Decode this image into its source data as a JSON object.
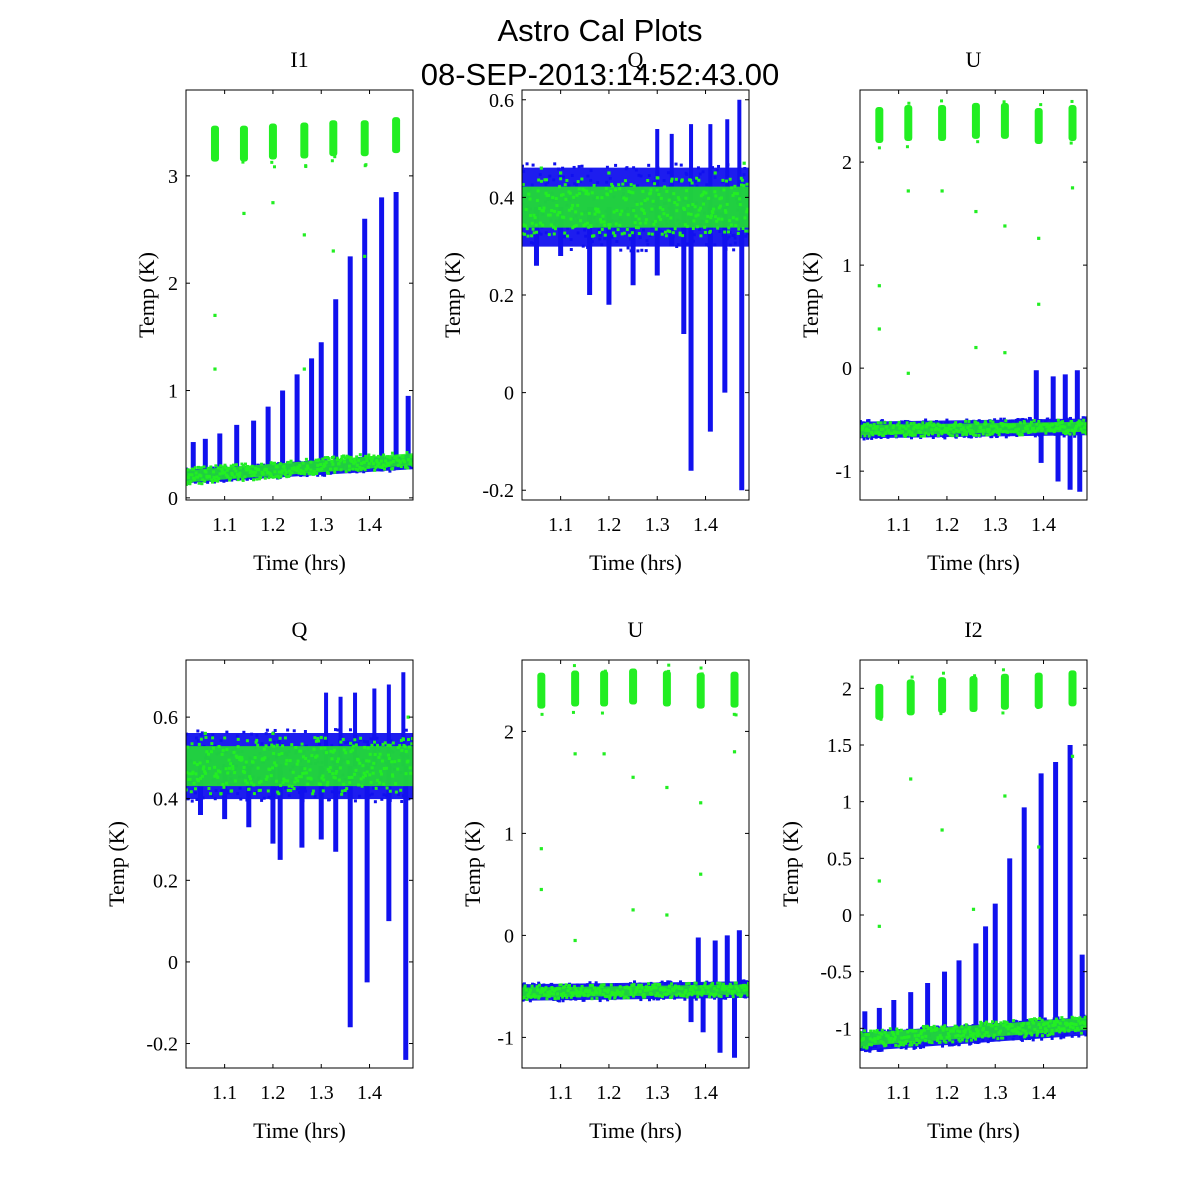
{
  "figure": {
    "title_line1": "Astro Cal Plots",
    "title_line2": "08-SEP-2013:14:52:43.00"
  },
  "colors": {
    "background": "#ffffff",
    "blue_series": "#1111ee",
    "green_series": "#22ee22"
  },
  "chart_data": [
    {
      "type": "scatter",
      "title": "I1",
      "xlabel": "Time (hrs)",
      "ylabel": "Temp (K)",
      "xlim": [
        1.02,
        1.49
      ],
      "ylim": [
        -0.02,
        3.8
      ],
      "xticks": [
        1.1,
        1.2,
        1.3,
        1.4
      ],
      "xtick_labels": [
        "1.1",
        "1.2",
        "1.3",
        "1.4"
      ],
      "yticks": [
        0,
        1,
        2,
        3
      ],
      "ytick_labels": [
        "0",
        "1",
        "2",
        "3"
      ],
      "series": [
        {
          "color": "blue",
          "baseline": [
            [
              1.02,
              0.2
            ],
            [
              1.49,
              0.33
            ]
          ],
          "baseline_spread": 0.07,
          "spikes": [
            [
              1.035,
              0.52
            ],
            [
              1.06,
              0.55
            ],
            [
              1.09,
              0.6
            ],
            [
              1.125,
              0.68
            ],
            [
              1.16,
              0.72
            ],
            [
              1.19,
              0.85
            ],
            [
              1.22,
              1.0
            ],
            [
              1.25,
              1.15
            ],
            [
              1.28,
              1.3
            ],
            [
              1.3,
              1.45
            ],
            [
              1.33,
              1.85
            ],
            [
              1.36,
              2.25
            ],
            [
              1.39,
              2.6
            ],
            [
              1.425,
              2.8
            ],
            [
              1.455,
              2.85
            ],
            [
              1.48,
              0.95
            ]
          ]
        },
        {
          "color": "green",
          "baseline": [
            [
              1.02,
              0.2
            ],
            [
              1.49,
              0.36
            ]
          ],
          "baseline_spread": 0.08,
          "clusters": [
            [
              1.08,
              3.3
            ],
            [
              1.14,
              3.3
            ],
            [
              1.2,
              3.32
            ],
            [
              1.265,
              3.33
            ],
            [
              1.325,
              3.35
            ],
            [
              1.39,
              3.35
            ],
            [
              1.455,
              3.38
            ]
          ],
          "outliers": [
            [
              1.08,
              1.7
            ],
            [
              1.08,
              1.2
            ],
            [
              1.14,
              2.65
            ],
            [
              1.2,
              2.75
            ],
            [
              1.265,
              2.45
            ],
            [
              1.325,
              2.3
            ],
            [
              1.39,
              2.25
            ],
            [
              1.265,
              1.2
            ]
          ]
        }
      ]
    },
    {
      "type": "scatter",
      "title": "Q",
      "xlabel": "Time (hrs)",
      "ylabel": "Temp (K)",
      "xlim": [
        1.02,
        1.49
      ],
      "ylim": [
        -0.22,
        0.62
      ],
      "xticks": [
        1.1,
        1.2,
        1.3,
        1.4
      ],
      "xtick_labels": [
        "1.1",
        "1.2",
        "1.3",
        "1.4"
      ],
      "yticks": [
        -0.2,
        0,
        0.2,
        0.4,
        0.6
      ],
      "ytick_labels": [
        "-0.2",
        "0",
        "0.2",
        "0.4",
        "0.6"
      ],
      "series": [
        {
          "color": "blue",
          "baseline": [
            [
              1.02,
              0.38
            ],
            [
              1.49,
              0.38
            ]
          ],
          "baseline_spread": 0.09,
          "spikes": [
            [
              1.05,
              0.26
            ],
            [
              1.1,
              0.28
            ],
            [
              1.16,
              0.2
            ],
            [
              1.2,
              0.18
            ],
            [
              1.25,
              0.22
            ],
            [
              1.3,
              0.24
            ],
            [
              1.33,
              0.3
            ],
            [
              1.355,
              0.12
            ],
            [
              1.37,
              -0.16
            ],
            [
              1.41,
              -0.08
            ],
            [
              1.44,
              0.0
            ],
            [
              1.475,
              -0.2
            ]
          ],
          "up_spikes": [
            [
              1.3,
              0.54
            ],
            [
              1.33,
              0.53
            ],
            [
              1.37,
              0.55
            ],
            [
              1.41,
              0.55
            ],
            [
              1.445,
              0.56
            ],
            [
              1.47,
              0.6
            ]
          ]
        },
        {
          "color": "green",
          "baseline": [
            [
              1.02,
              0.38
            ],
            [
              1.49,
              0.38
            ]
          ],
          "baseline_spread": 0.06,
          "outliers": [
            [
              1.06,
              0.46
            ],
            [
              1.1,
              0.45
            ],
            [
              1.2,
              0.45
            ],
            [
              1.3,
              0.44
            ],
            [
              1.42,
              0.45
            ],
            [
              1.48,
              0.47
            ]
          ]
        }
      ]
    },
    {
      "type": "scatter",
      "title": "U",
      "xlabel": "Time (hrs)",
      "ylabel": "Temp (K)",
      "xlim": [
        1.02,
        1.49
      ],
      "ylim": [
        -1.28,
        2.7
      ],
      "xticks": [
        1.1,
        1.2,
        1.3,
        1.4
      ],
      "xtick_labels": [
        "1.1",
        "1.2",
        "1.3",
        "1.4"
      ],
      "yticks": [
        -1,
        0,
        1,
        2
      ],
      "ytick_labels": [
        "-1",
        "0",
        "1",
        "2"
      ],
      "series": [
        {
          "color": "blue",
          "baseline": [
            [
              1.02,
              -0.6
            ],
            [
              1.49,
              -0.57
            ]
          ],
          "baseline_spread": 0.09,
          "spikes": [
            [
              1.385,
              -0.02
            ],
            [
              1.42,
              -0.08
            ],
            [
              1.445,
              -0.06
            ],
            [
              1.47,
              -0.02
            ]
          ],
          "down_spikes": [
            [
              1.395,
              -0.92
            ],
            [
              1.43,
              -1.1
            ],
            [
              1.455,
              -1.18
            ],
            [
              1.475,
              -1.2
            ]
          ]
        },
        {
          "color": "green",
          "baseline": [
            [
              1.02,
              -0.6
            ],
            [
              1.49,
              -0.57
            ]
          ],
          "baseline_spread": 0.07,
          "clusters": [
            [
              1.06,
              2.36
            ],
            [
              1.12,
              2.38
            ],
            [
              1.19,
              2.38
            ],
            [
              1.26,
              2.4
            ],
            [
              1.32,
              2.4
            ],
            [
              1.39,
              2.35
            ],
            [
              1.46,
              2.38
            ]
          ],
          "outliers": [
            [
              1.06,
              0.8
            ],
            [
              1.06,
              0.38
            ],
            [
              1.12,
              1.72
            ],
            [
              1.12,
              -0.05
            ],
            [
              1.19,
              1.72
            ],
            [
              1.26,
              1.52
            ],
            [
              1.26,
              0.2
            ],
            [
              1.32,
              1.38
            ],
            [
              1.32,
              0.15
            ],
            [
              1.39,
              1.26
            ],
            [
              1.39,
              0.62
            ],
            [
              1.46,
              1.75
            ]
          ]
        }
      ]
    },
    {
      "type": "scatter",
      "title": "Q",
      "xlabel": "Time (hrs)",
      "ylabel": "Temp (K)",
      "xlim": [
        1.02,
        1.49
      ],
      "ylim": [
        -0.26,
        0.74
      ],
      "xticks": [
        1.1,
        1.2,
        1.3,
        1.4
      ],
      "xtick_labels": [
        "1.1",
        "1.2",
        "1.3",
        "1.4"
      ],
      "yticks": [
        -0.2,
        0,
        0.2,
        0.4,
        0.6
      ],
      "ytick_labels": [
        "-0.2",
        "0",
        "0.2",
        "0.4",
        "0.6"
      ],
      "series": [
        {
          "color": "blue",
          "baseline": [
            [
              1.02,
              0.48
            ],
            [
              1.49,
              0.48
            ]
          ],
          "baseline_spread": 0.09,
          "spikes": [
            [
              1.05,
              0.36
            ],
            [
              1.1,
              0.35
            ],
            [
              1.15,
              0.33
            ],
            [
              1.2,
              0.29
            ],
            [
              1.215,
              0.25
            ],
            [
              1.26,
              0.28
            ],
            [
              1.3,
              0.3
            ],
            [
              1.33,
              0.27
            ],
            [
              1.36,
              -0.16
            ],
            [
              1.395,
              -0.05
            ],
            [
              1.44,
              0.1
            ],
            [
              1.475,
              -0.24
            ]
          ],
          "up_spikes": [
            [
              1.31,
              0.66
            ],
            [
              1.34,
              0.65
            ],
            [
              1.37,
              0.66
            ],
            [
              1.41,
              0.67
            ],
            [
              1.44,
              0.68
            ],
            [
              1.47,
              0.71
            ]
          ]
        },
        {
          "color": "green",
          "baseline": [
            [
              1.02,
              0.48
            ],
            [
              1.49,
              0.48
            ]
          ],
          "baseline_spread": 0.07,
          "outliers": [
            [
              1.06,
              0.56
            ],
            [
              1.2,
              0.56
            ],
            [
              1.3,
              0.55
            ],
            [
              1.48,
              0.6
            ]
          ]
        }
      ]
    },
    {
      "type": "scatter",
      "title": "U",
      "xlabel": "Time (hrs)",
      "ylabel": "Temp (K)",
      "xlim": [
        1.02,
        1.49
      ],
      "ylim": [
        -1.3,
        2.7
      ],
      "xticks": [
        1.1,
        1.2,
        1.3,
        1.4
      ],
      "xtick_labels": [
        "1.1",
        "1.2",
        "1.3",
        "1.4"
      ],
      "yticks": [
        -1,
        0,
        1,
        2
      ],
      "ytick_labels": [
        "-1",
        "0",
        "1",
        "2"
      ],
      "series": [
        {
          "color": "blue",
          "baseline": [
            [
              1.02,
              -0.56
            ],
            [
              1.49,
              -0.53
            ]
          ],
          "baseline_spread": 0.09,
          "spikes": [
            [
              1.385,
              -0.02
            ],
            [
              1.42,
              -0.05
            ],
            [
              1.445,
              0.0
            ],
            [
              1.47,
              0.05
            ]
          ],
          "down_spikes": [
            [
              1.37,
              -0.85
            ],
            [
              1.395,
              -0.95
            ],
            [
              1.43,
              -1.15
            ],
            [
              1.46,
              -1.2
            ]
          ]
        },
        {
          "color": "green",
          "baseline": [
            [
              1.02,
              -0.56
            ],
            [
              1.49,
              -0.53
            ]
          ],
          "baseline_spread": 0.07,
          "clusters": [
            [
              1.06,
              2.4
            ],
            [
              1.13,
              2.42
            ],
            [
              1.19,
              2.42
            ],
            [
              1.25,
              2.44
            ],
            [
              1.32,
              2.42
            ],
            [
              1.39,
              2.4
            ],
            [
              1.46,
              2.41
            ]
          ],
          "outliers": [
            [
              1.06,
              0.85
            ],
            [
              1.06,
              0.45
            ],
            [
              1.13,
              1.78
            ],
            [
              1.13,
              -0.05
            ],
            [
              1.19,
              1.78
            ],
            [
              1.25,
              1.55
            ],
            [
              1.25,
              0.25
            ],
            [
              1.32,
              1.45
            ],
            [
              1.32,
              0.2
            ],
            [
              1.39,
              1.3
            ],
            [
              1.39,
              0.6
            ],
            [
              1.46,
              1.8
            ]
          ]
        }
      ]
    },
    {
      "type": "scatter",
      "title": "I2",
      "xlabel": "Time (hrs)",
      "ylabel": "Temp (K)",
      "xlim": [
        1.02,
        1.49
      ],
      "ylim": [
        -1.35,
        2.25
      ],
      "xticks": [
        1.1,
        1.2,
        1.3,
        1.4
      ],
      "xtick_labels": [
        "1.1",
        "1.2",
        "1.3",
        "1.4"
      ],
      "yticks": [
        -1,
        -0.5,
        0,
        0.5,
        1,
        1.5,
        2
      ],
      "ytick_labels": [
        "-1",
        "-0.5",
        "0",
        "0.5",
        "1",
        "1.5",
        "2"
      ],
      "series": [
        {
          "color": "blue",
          "baseline": [
            [
              1.02,
              -1.12
            ],
            [
              1.49,
              -0.98
            ]
          ],
          "baseline_spread": 0.09,
          "spikes": [
            [
              1.03,
              -0.85
            ],
            [
              1.06,
              -0.82
            ],
            [
              1.09,
              -0.75
            ],
            [
              1.125,
              -0.68
            ],
            [
              1.16,
              -0.6
            ],
            [
              1.195,
              -0.5
            ],
            [
              1.225,
              -0.4
            ],
            [
              1.26,
              -0.25
            ],
            [
              1.28,
              -0.1
            ],
            [
              1.3,
              0.1
            ],
            [
              1.33,
              0.5
            ],
            [
              1.36,
              0.95
            ],
            [
              1.395,
              1.25
            ],
            [
              1.425,
              1.35
            ],
            [
              1.455,
              1.5
            ],
            [
              1.48,
              -0.35
            ]
          ]
        },
        {
          "color": "green",
          "baseline": [
            [
              1.02,
              -1.1
            ],
            [
              1.49,
              -0.96
            ]
          ],
          "baseline_spread": 0.08,
          "clusters": [
            [
              1.06,
              1.88
            ],
            [
              1.125,
              1.92
            ],
            [
              1.19,
              1.94
            ],
            [
              1.255,
              1.95
            ],
            [
              1.32,
              1.97
            ],
            [
              1.39,
              1.98
            ],
            [
              1.46,
              2.0
            ]
          ],
          "outliers": [
            [
              1.06,
              0.3
            ],
            [
              1.06,
              -0.1
            ],
            [
              1.125,
              1.2
            ],
            [
              1.19,
              0.75
            ],
            [
              1.255,
              0.05
            ],
            [
              1.32,
              1.05
            ],
            [
              1.39,
              0.6
            ],
            [
              1.46,
              1.4
            ]
          ]
        }
      ]
    }
  ]
}
